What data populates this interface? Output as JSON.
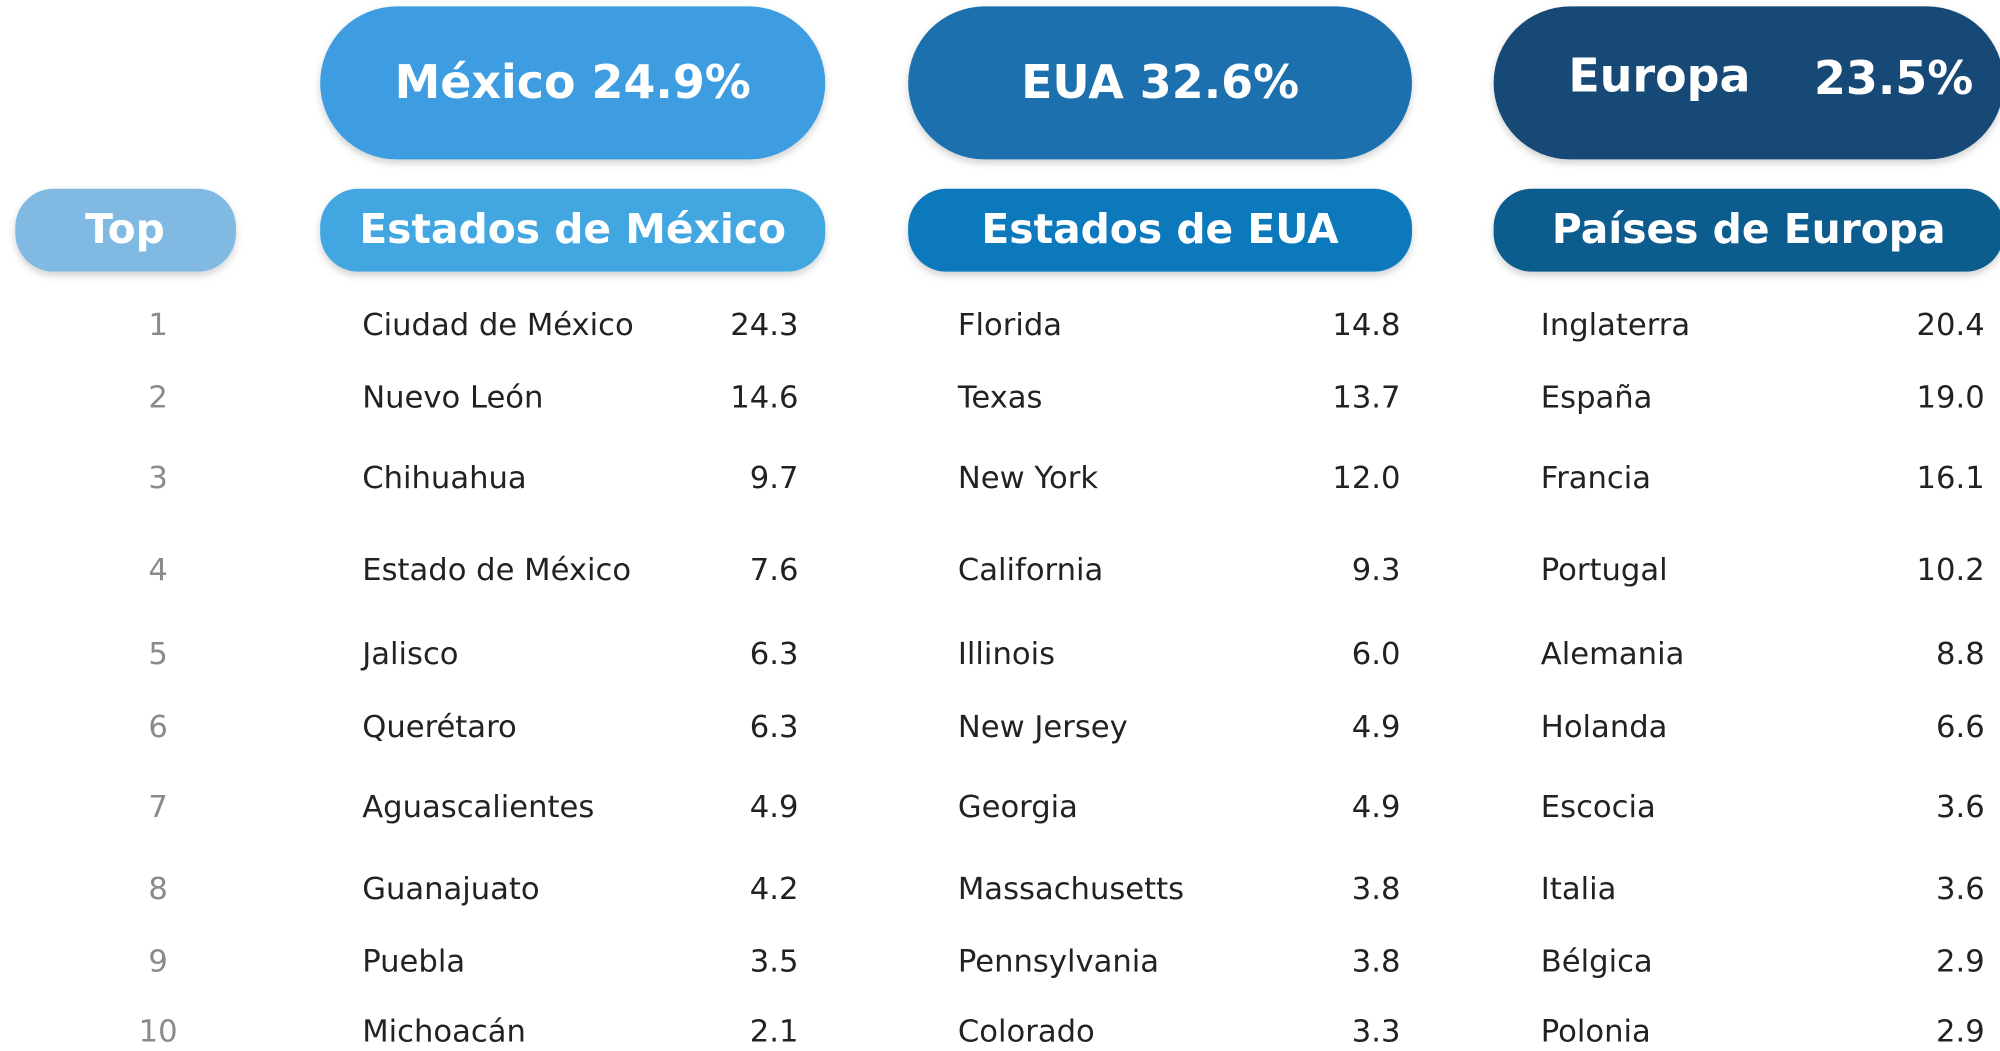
{
  "top": {
    "header": "Top",
    "ranks": [
      "1",
      "2",
      "3",
      "4",
      "5",
      "6",
      "7",
      "8",
      "9",
      "10"
    ]
  },
  "columns": [
    {
      "pill": "México 24.9%",
      "subheader": "Estados de México",
      "rows": [
        {
          "name": "Ciudad de México",
          "value": "24.3"
        },
        {
          "name": "Nuevo León",
          "value": "14.6"
        },
        {
          "name": "Chihuahua",
          "value": "9.7"
        },
        {
          "name": "Estado de México",
          "value": "7.6"
        },
        {
          "name": "Jalisco",
          "value": "6.3"
        },
        {
          "name": "Querétaro",
          "value": "6.3"
        },
        {
          "name": "Aguascalientes",
          "value": "4.9"
        },
        {
          "name": "Guanajuato",
          "value": "4.2"
        },
        {
          "name": "Puebla",
          "value": "3.5"
        },
        {
          "name": "Michoacán",
          "value": "2.1"
        }
      ]
    },
    {
      "pill": "EUA 32.6%",
      "subheader": "Estados de EUA",
      "rows": [
        {
          "name": "Florida",
          "value": "14.8"
        },
        {
          "name": "Texas",
          "value": "13.7"
        },
        {
          "name": "New York",
          "value": "12.0"
        },
        {
          "name": "California",
          "value": "9.3"
        },
        {
          "name": "Illinois",
          "value": "6.0"
        },
        {
          "name": "New Jersey",
          "value": "4.9"
        },
        {
          "name": "Georgia",
          "value": "4.9"
        },
        {
          "name": "Massachusetts",
          "value": "3.8"
        },
        {
          "name": "Pennsylvania",
          "value": "3.8"
        },
        {
          "name": "Colorado",
          "value": "3.3"
        }
      ]
    },
    {
      "pill": "Europa",
      "pill_value": "23.5%",
      "subheader": "Países de Europa",
      "rows": [
        {
          "name": "Inglaterra",
          "value": "20.4"
        },
        {
          "name": "España",
          "value": "19.0"
        },
        {
          "name": "Francia",
          "value": "16.1"
        },
        {
          "name": "Portugal",
          "value": "10.2"
        },
        {
          "name": "Alemania",
          "value": "8.8"
        },
        {
          "name": "Holanda",
          "value": "6.6"
        },
        {
          "name": "Escocia",
          "value": "3.6"
        },
        {
          "name": "Italia",
          "value": "3.6"
        },
        {
          "name": "Bélgica",
          "value": "2.9"
        },
        {
          "name": "Polonia",
          "value": "2.9"
        }
      ]
    }
  ]
}
